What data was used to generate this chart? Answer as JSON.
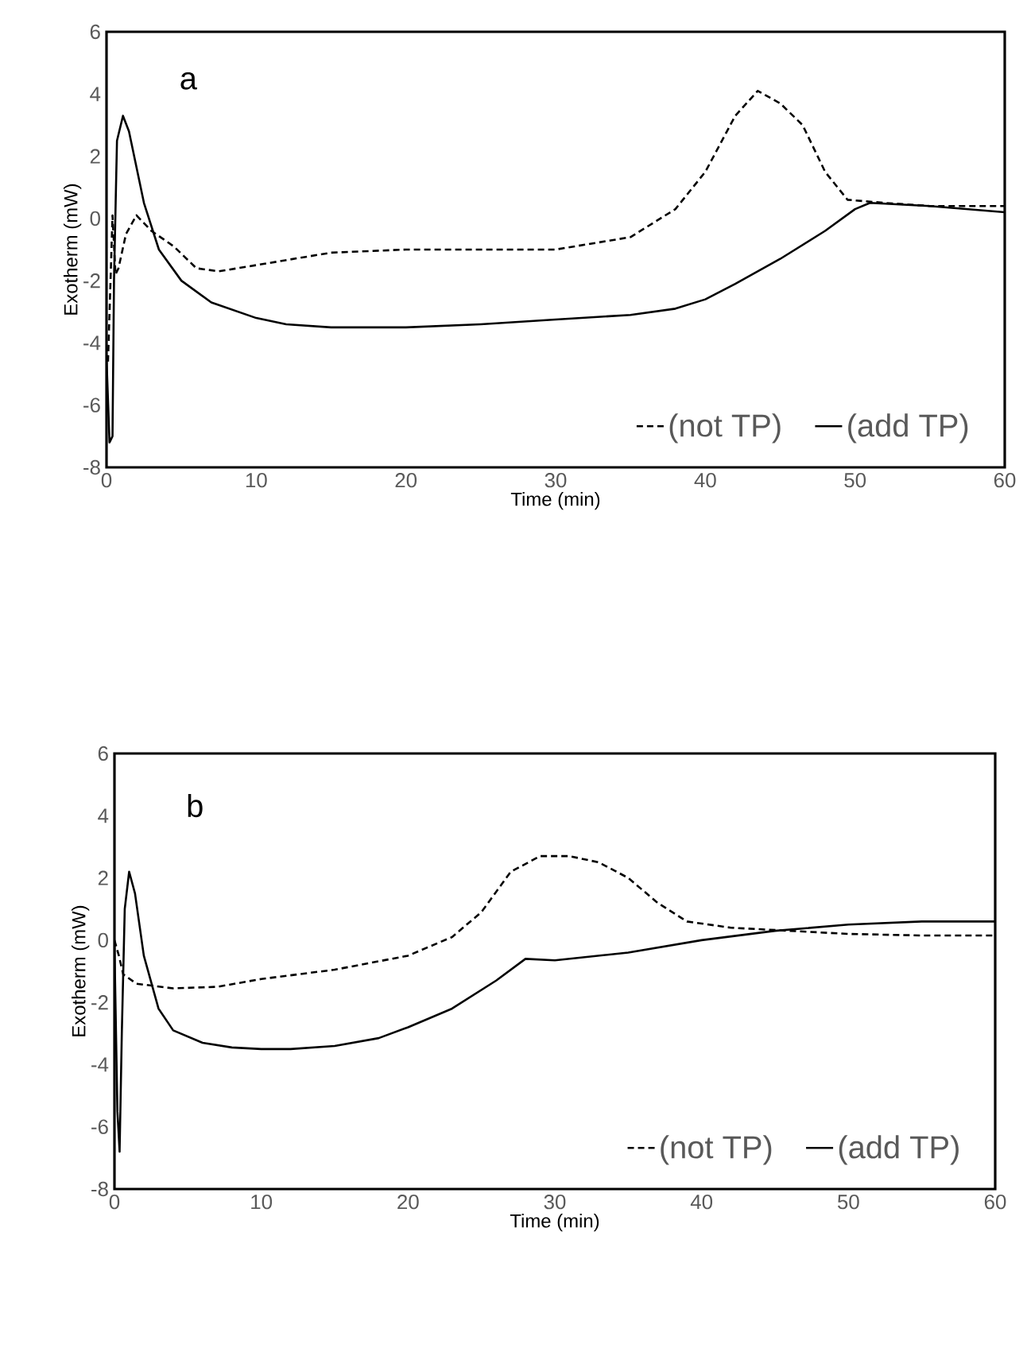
{
  "chart_data": [
    {
      "type": "line",
      "annotations": [
        "a"
      ],
      "xlabel": "Time (min)",
      "ylabel": "Exotherm (mW)",
      "xlim": [
        0,
        60
      ],
      "ylim": [
        -8,
        6
      ],
      "xticks": [
        0,
        10,
        20,
        30,
        40,
        50,
        60
      ],
      "yticks": [
        -8,
        -6,
        -4,
        -2,
        0,
        2,
        4,
        6
      ],
      "grid": false,
      "legend": "bottom right",
      "marker": "none",
      "series": [
        {
          "name": "(not TP)",
          "color": "#000000",
          "line_style": "dashed",
          "x": [
            0.1,
            0.3,
            0.4,
            0.6,
            0.8,
            1.3,
            2,
            3,
            4.5,
            6,
            7.5,
            10,
            15,
            20,
            25,
            30,
            35,
            38,
            40,
            42,
            43.5,
            45,
            46.5,
            48,
            49.5,
            52,
            55,
            60
          ],
          "values": [
            -4.6,
            -1.5,
            0.1,
            -1.8,
            -1.6,
            -0.5,
            0.1,
            -0.4,
            -0.9,
            -1.6,
            -1.7,
            -1.5,
            -1.1,
            -1.0,
            -1.0,
            -1.0,
            -0.6,
            0.3,
            1.5,
            3.3,
            4.1,
            3.7,
            3.0,
            1.5,
            0.6,
            0.5,
            0.4,
            0.4
          ]
        },
        {
          "name": "(add TP)",
          "color": "#000000",
          "line_style": "solid",
          "x": [
            0,
            0.2,
            0.4,
            0.5,
            0.7,
            1.1,
            1.5,
            2.5,
            3.5,
            5,
            7,
            10,
            12,
            15,
            20,
            25,
            30,
            35,
            38,
            40,
            42,
            45,
            48,
            50,
            51,
            55,
            60
          ],
          "values": [
            -4.5,
            -7.2,
            -7.0,
            -2,
            2.5,
            3.3,
            2.8,
            0.5,
            -1,
            -2,
            -2.7,
            -3.2,
            -3.4,
            -3.5,
            -3.5,
            -3.4,
            -3.25,
            -3.1,
            -2.9,
            -2.6,
            -2.1,
            -1.3,
            -0.4,
            0.3,
            0.5,
            0.4,
            0.2
          ]
        }
      ]
    },
    {
      "type": "line",
      "annotations": [
        "b"
      ],
      "xlabel": "Time (min)",
      "ylabel": "Exotherm (mW)",
      "xlim": [
        0,
        60
      ],
      "ylim": [
        -8,
        6
      ],
      "xticks": [
        0,
        10,
        20,
        30,
        40,
        50,
        60
      ],
      "yticks": [
        -8,
        -6,
        -4,
        -2,
        0,
        2,
        4,
        6
      ],
      "grid": false,
      "legend": "bottom right",
      "marker": "none",
      "series": [
        {
          "name": "(not TP)",
          "color": "#000000",
          "line_style": "dashed",
          "x": [
            0,
            0.3,
            0.6,
            1.5,
            4,
            7,
            10,
            15,
            20,
            23,
            25,
            27,
            29,
            31,
            33,
            35,
            37,
            39,
            42,
            46,
            50,
            55,
            60
          ],
          "values": [
            0,
            -0.5,
            -1.1,
            -1.4,
            -1.55,
            -1.5,
            -1.25,
            -0.95,
            -0.5,
            0.1,
            0.9,
            2.2,
            2.7,
            2.7,
            2.5,
            2.0,
            1.2,
            0.6,
            0.4,
            0.3,
            0.2,
            0.15,
            0.15
          ]
        },
        {
          "name": "(add TP)",
          "color": "#000000",
          "line_style": "solid",
          "x": [
            0,
            0.2,
            0.35,
            0.5,
            0.7,
            1,
            1.4,
            2,
            3,
            4,
            6,
            8,
            10,
            12,
            15,
            18,
            20,
            23,
            26,
            28,
            30,
            35,
            40,
            45,
            50,
            55,
            60
          ],
          "values": [
            -0.2,
            -5.5,
            -6.8,
            -3,
            1.0,
            2.2,
            1.5,
            -0.5,
            -2.2,
            -2.9,
            -3.3,
            -3.45,
            -3.5,
            -3.5,
            -3.4,
            -3.15,
            -2.8,
            -2.2,
            -1.3,
            -0.6,
            -0.65,
            -0.4,
            0,
            0.3,
            0.5,
            0.6,
            0.6
          ]
        }
      ]
    }
  ]
}
